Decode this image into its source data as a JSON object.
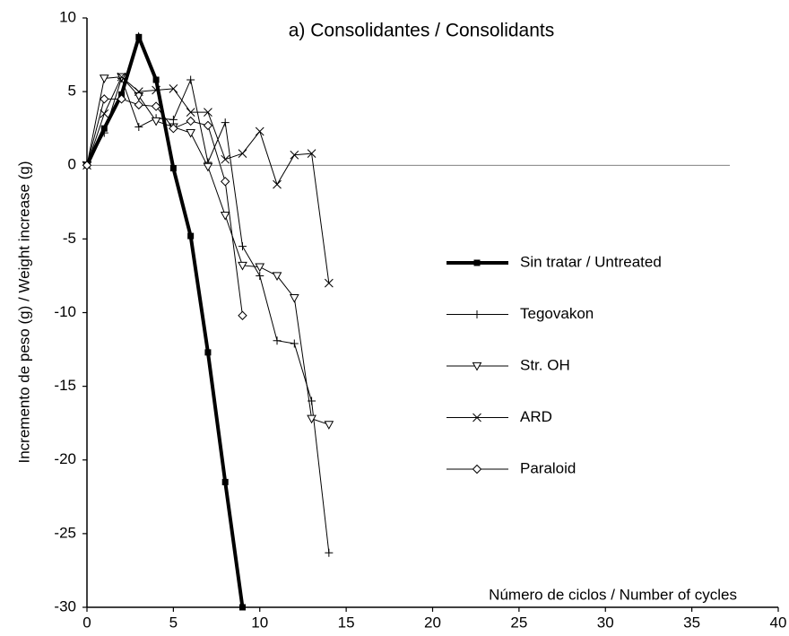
{
  "chart_data": {
    "type": "line",
    "title": "a) Consolidantes / Consolidants",
    "x_label": "Número de ciclos / Number of cycles",
    "y_label": "Incremento de peso (g)  /  Weight increase (g)",
    "x": [
      0,
      1,
      2,
      3,
      4,
      5,
      6,
      7,
      8,
      9,
      10,
      11,
      12,
      13,
      14
    ],
    "series": [
      {
        "name": "Sin tratar / Untreated",
        "color": "#000000",
        "marker": "square",
        "values": [
          0,
          2.5,
          4.8,
          8.7,
          5.8,
          -0.2,
          -4.8,
          -12.7,
          -21.5,
          -30,
          null,
          null,
          null,
          null,
          null
        ]
      },
      {
        "name": "Tegovakon",
        "color": "#000000",
        "marker": "plus",
        "values": [
          0,
          2.2,
          5.9,
          2.6,
          3.2,
          3.1,
          5.8,
          0.2,
          2.9,
          -5.5,
          -7.5,
          -11.9,
          -12.1,
          -16,
          -26.3
        ]
      },
      {
        "name": "Str. OH",
        "color": "#000000",
        "marker": "triangle-down",
        "values": [
          0,
          5.9,
          6.0,
          4.7,
          3.0,
          2.6,
          2.2,
          -0.1,
          -3.4,
          -6.8,
          -6.9,
          -7.5,
          -9.0,
          -17.2,
          -17.6
        ]
      },
      {
        "name": "ARD",
        "color": "#000000",
        "marker": "x",
        "values": [
          0,
          3.5,
          6.0,
          5.0,
          5.1,
          5.2,
          3.6,
          3.6,
          0.4,
          0.8,
          2.3,
          -1.3,
          0.7,
          0.8,
          -8.0
        ]
      },
      {
        "name": "Paraloid",
        "color": "#000000",
        "marker": "diamond",
        "values": [
          0,
          4.5,
          4.5,
          4.1,
          4.0,
          2.5,
          3.0,
          2.7,
          -1.1,
          -10.2,
          null,
          null,
          null,
          null,
          null
        ]
      }
    ],
    "xlim": [
      0,
      40
    ],
    "xticks": [
      0,
      5,
      10,
      15,
      20,
      25,
      30,
      35,
      40
    ],
    "ylim": [
      -30,
      10
    ],
    "yticks": [
      10,
      5,
      0,
      -5,
      -10,
      -15,
      -20,
      -25,
      -30
    ]
  }
}
